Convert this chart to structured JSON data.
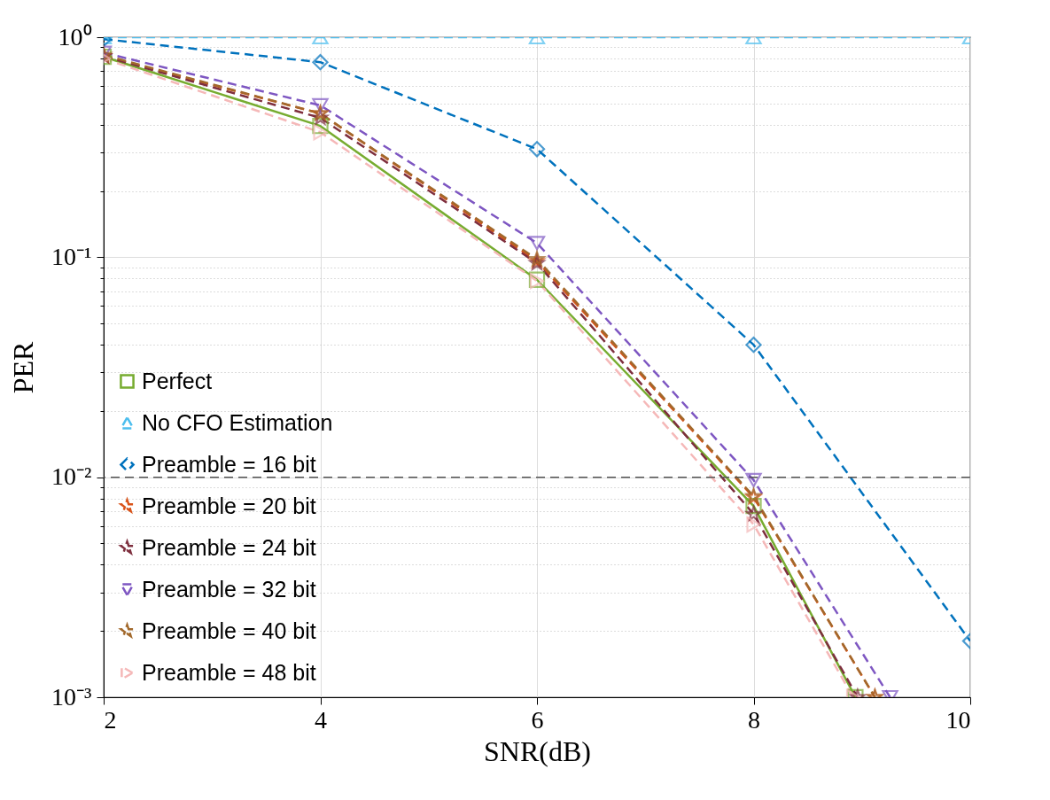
{
  "chart_data": {
    "type": "line",
    "xlabel": "SNR(dB)",
    "ylabel": "PER",
    "log": "y",
    "grid": true,
    "legend": "bottom left",
    "xlim": [
      2,
      10
    ],
    "xticks": [
      2,
      4,
      6,
      8,
      10
    ],
    "ylim": [
      0.001,
      1
    ],
    "yticks": [
      {
        "value": 0.001,
        "label": "10⁻³"
      },
      {
        "value": 0.01,
        "label": "10⁻²"
      },
      {
        "value": 0.1,
        "label": "10⁻¹"
      },
      {
        "value": 1,
        "label": "10⁰"
      }
    ],
    "ref_lines": [
      {
        "axis": "y",
        "value": 0.01,
        "color": "#555555",
        "line_style": "dashed"
      }
    ],
    "series": [
      {
        "name": "Perfect",
        "color": "#77ac30",
        "marker": "square",
        "line_style": "solid",
        "x": [
          2,
          4,
          6,
          8,
          8.94
        ],
        "values": [
          0.815,
          0.395,
          0.079,
          0.0074,
          0.001
        ]
      },
      {
        "name": "No CFO Estimation",
        "color": "#4dbeee",
        "marker": "triangle",
        "line_style": "dashed",
        "x": [
          2,
          4,
          6,
          8,
          10
        ],
        "values": [
          1,
          1,
          1,
          1,
          1
        ]
      },
      {
        "name": "Preamble = 16 bit",
        "color": "#0072bd",
        "marker": "diamond",
        "line_style": "dashed",
        "x": [
          2,
          4,
          6,
          8,
          10
        ],
        "values": [
          0.98,
          0.77,
          0.31,
          0.04,
          0.0018
        ]
      },
      {
        "name": "Preamble = 20 bit",
        "color": "#d95319",
        "marker": "star",
        "line_style": "dashed",
        "x": [
          2,
          4,
          6,
          8,
          9.12
        ],
        "values": [
          0.82,
          0.45,
          0.096,
          0.0081,
          0.001
        ]
      },
      {
        "name": "Preamble = 24 bit",
        "color": "#7e2f3e",
        "marker": "star",
        "line_style": "dashed",
        "x": [
          2,
          4,
          6,
          8,
          8.96
        ],
        "values": [
          0.82,
          0.43,
          0.094,
          0.0068,
          0.001
        ]
      },
      {
        "name": "Preamble = 32 bit",
        "color": "#7e57c2",
        "marker": "triangle-down",
        "line_style": "dashed",
        "x": [
          2,
          4,
          6,
          8,
          9.26
        ],
        "values": [
          0.85,
          0.49,
          0.116,
          0.0097,
          0.001
        ]
      },
      {
        "name": "Preamble = 40 bit",
        "color": "#a2692c",
        "marker": "star",
        "line_style": "dashed",
        "x": [
          2,
          4,
          6,
          8,
          9.12
        ],
        "values": [
          0.83,
          0.45,
          0.098,
          0.0082,
          0.001
        ]
      },
      {
        "name": "Preamble = 48 bit",
        "color": "#f5b8b8",
        "marker": "triangle-right",
        "line_style": "dashed",
        "x": [
          2,
          4,
          6,
          8,
          8.92
        ],
        "values": [
          0.8,
          0.37,
          0.078,
          0.0061,
          0.001
        ]
      }
    ]
  }
}
